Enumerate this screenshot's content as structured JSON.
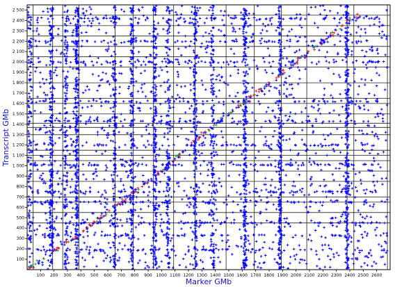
{
  "chart_data": {
    "type": "scatter",
    "title": "",
    "xlabel": "Marker GMb",
    "ylabel": "Transcript GMb",
    "xlim": [
      0,
      2700
    ],
    "ylim": [
      0,
      2550
    ],
    "x_ticks": [
      100,
      200,
      300,
      400,
      500,
      600,
      700,
      800,
      900,
      1000,
      1100,
      1200,
      1300,
      1400,
      1500,
      1600,
      1700,
      1800,
      1900,
      2000,
      2100,
      2200,
      2300,
      2400,
      2500,
      2600
    ],
    "y_ticks": [
      100,
      200,
      300,
      400,
      500,
      600,
      700,
      800,
      900,
      1000,
      1100,
      1200,
      1300,
      1400,
      1500,
      1600,
      1700,
      1800,
      1900,
      2000,
      2100,
      2200,
      2300,
      2400,
      2500
    ],
    "x_tick_labels": [
      "100",
      "200",
      "300",
      "400",
      "500",
      "600",
      "700",
      "800",
      "900",
      "1000",
      "1100",
      "1200",
      "1300",
      "1400",
      "1500",
      "1600",
      "1700",
      "1800",
      "1900",
      "2000",
      "2100",
      "2200",
      "2300",
      "2400",
      "2500",
      "2600"
    ],
    "y_tick_labels": [
      "100",
      "200",
      "300",
      "400",
      "500",
      "600",
      "700",
      "800",
      "900",
      "1 000",
      "1 100",
      "1 200",
      "1 300",
      "1 400",
      "1 500",
      "1 600",
      "1 700",
      "1 800",
      "1 900",
      "2 000",
      "2 100",
      "2 200",
      "2 300",
      "2 400",
      "2 500"
    ],
    "grid": true,
    "vertical_grid_lines": [
      45,
      190,
      265,
      385,
      655,
      790,
      940,
      1090,
      1250,
      1480,
      1690,
      1890,
      2080,
      2380,
      2430,
      2680
    ],
    "horizontal_grid_lines": [
      450,
      550,
      650,
      700,
      850,
      950,
      1050,
      1100,
      1150,
      1300,
      1370,
      1410,
      1500,
      1600,
      1650,
      1800,
      1950,
      2050,
      2150,
      2250,
      2350,
      2450
    ],
    "dense_columns": [
      {
        "x": 20,
        "density": 0.8
      },
      {
        "x": 180,
        "density": 1.4
      },
      {
        "x": 290,
        "density": 1.0
      },
      {
        "x": 370,
        "density": 1.8
      },
      {
        "x": 650,
        "density": 1.0
      },
      {
        "x": 780,
        "density": 1.3
      },
      {
        "x": 950,
        "density": 1.6
      },
      {
        "x": 1050,
        "density": 1.0
      },
      {
        "x": 1250,
        "density": 1.2
      },
      {
        "x": 1380,
        "density": 1.0
      },
      {
        "x": 1620,
        "density": 1.8
      },
      {
        "x": 1880,
        "density": 1.5
      },
      {
        "x": 2380,
        "density": 1.6
      }
    ],
    "dense_rows": [
      2420,
      2200,
      2000,
      1620,
      1430,
      1200,
      1010,
      750,
      650,
      450,
      330,
      190
    ],
    "diagonal_segments": [
      [
        0,
        0
      ],
      [
        380,
        330
      ],
      [
        1000,
        950
      ],
      [
        1300,
        1300
      ],
      [
        1640,
        1630
      ],
      [
        1900,
        1900
      ],
      [
        2250,
        2250
      ],
      [
        2450,
        2450
      ]
    ],
    "series": [
      {
        "style": "scattered markers",
        "color": "#0000ff",
        "marker": "plus"
      },
      {
        "style": "diagonal markers",
        "color": "#e0262b",
        "marker": "plus"
      },
      {
        "style": "diagonal markers",
        "color": "#1fa03a",
        "marker": "plus"
      }
    ]
  }
}
